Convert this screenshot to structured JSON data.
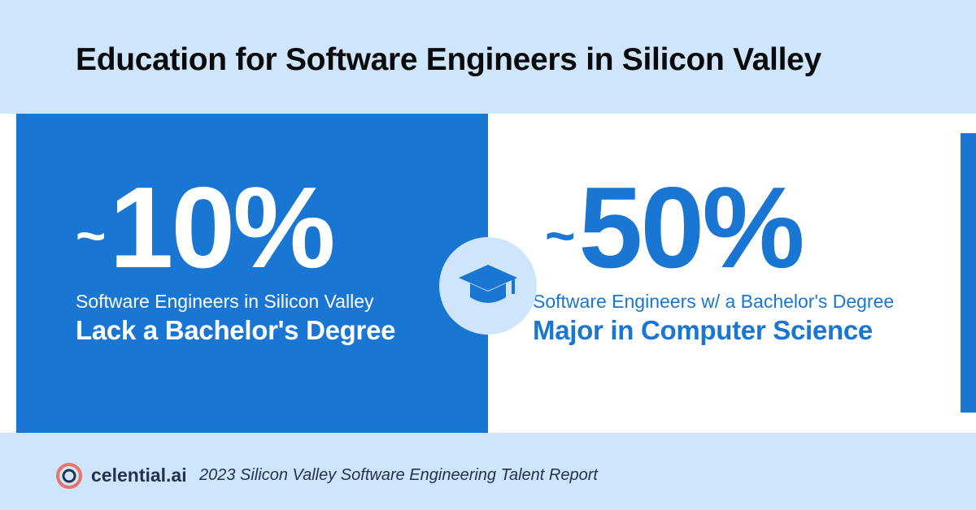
{
  "title": "Education for Software Engineers in Silicon Valley",
  "left_stat": {
    "tilde": "~",
    "value": "10%",
    "subtitle": "Software Engineers in Silicon Valley",
    "emphasis": "Lack a Bachelor's Degree"
  },
  "right_stat": {
    "tilde": "~",
    "value": "50%",
    "subtitle": "Software Engineers w/ a Bachelor's Degree",
    "emphasis": "Major in Computer Science"
  },
  "center_icon": "graduation-cap-icon",
  "footer": {
    "logo_icon": "celential-logo-icon",
    "brand": "celential.ai",
    "report": "2023 Silicon Valley Software Engineering Talent Report"
  },
  "colors": {
    "background": "#cfe5fb",
    "accent_blue": "#1976d2",
    "white": "#ffffff",
    "logo_red": "#e8736b",
    "text_dark": "#24324a"
  }
}
